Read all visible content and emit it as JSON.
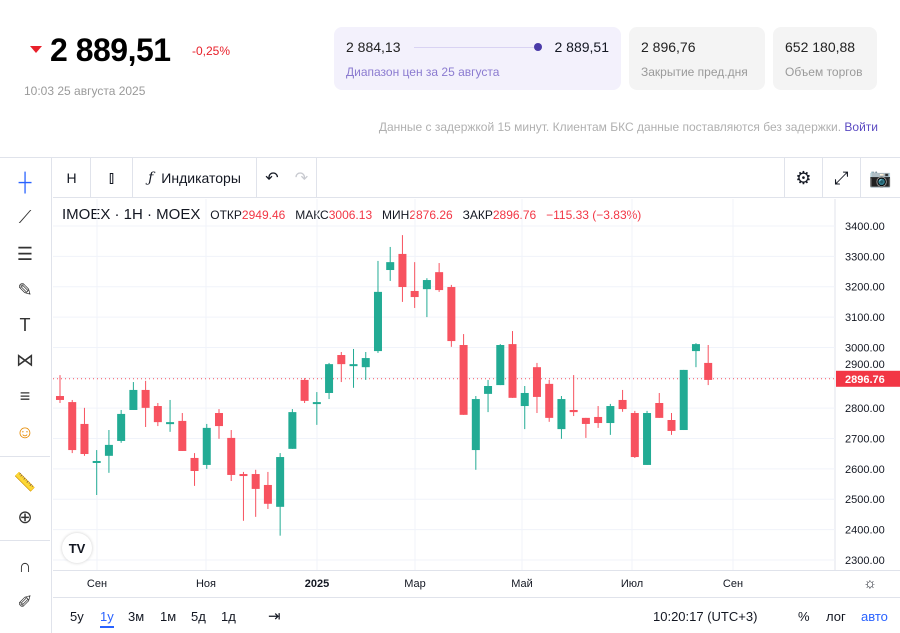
{
  "quote": {
    "price": "2 889,51",
    "change": "-0,25%",
    "timestamp": "10:03 25 августа 2025"
  },
  "stats": {
    "range_low": "2 884,13",
    "range_high": "2 889,51",
    "range_label": "Диапазон цен за 25 августа",
    "prev_close": "2 896,76",
    "prev_close_label": "Закрытие пред.дня",
    "volume": "652 180,88",
    "volume_label": "Объем торгов"
  },
  "notice": {
    "text": "Данные с задержкой 15 минут. Клиентам БКС данные поставляются без задержки.",
    "login": "Войти"
  },
  "toolbar": {
    "interval": "H",
    "indicators": "Индикаторы"
  },
  "legend": {
    "symbol": "IMOEX · 1H · MOEX",
    "open_label": "ОТКР",
    "open": "2949.46",
    "high_label": "МАКС",
    "high": "3006.13",
    "low_label": "МИН",
    "low": "2876.26",
    "close_label": "ЗАКР",
    "close": "2896.76",
    "change": "−115.33 (−3.83%)"
  },
  "colors": {
    "up": "#22ab94",
    "down": "#f7525f",
    "accent": "#2962ff"
  },
  "chart_data": {
    "type": "candlestick",
    "ylim": [
      2250,
      3450
    ],
    "yticks": [
      "3400.00",
      "3300.00",
      "3200.00",
      "3100.00",
      "3000.00",
      "2900.00",
      "2800.00",
      "2700.00",
      "2600.00",
      "2500.00",
      "2400.00",
      "2300.00"
    ],
    "xticks": [
      "Сен",
      "Ноя",
      "2025",
      "Мар",
      "Май",
      "Июл",
      "Сен"
    ],
    "last_price": "2896.76",
    "ohlc": [
      [
        2840,
        2909,
        2817,
        2827
      ],
      [
        2820,
        2827,
        2652,
        2662
      ],
      [
        2748,
        2801,
        2643,
        2649
      ],
      [
        2623,
        2662,
        2514,
        2626
      ],
      [
        2643,
        2728,
        2587,
        2679
      ],
      [
        2692,
        2794,
        2686,
        2781
      ],
      [
        2794,
        2886,
        2794,
        2860
      ],
      [
        2860,
        2890,
        2738,
        2801
      ],
      [
        2807,
        2817,
        2741,
        2754
      ],
      [
        2748,
        2827,
        2722,
        2754
      ],
      [
        2758,
        2784,
        2659,
        2659
      ],
      [
        2636,
        2652,
        2544,
        2593
      ],
      [
        2613,
        2748,
        2600,
        2735
      ],
      [
        2784,
        2797,
        2699,
        2741
      ],
      [
        2702,
        2728,
        2560,
        2580
      ],
      [
        2583,
        2590,
        2429,
        2577
      ],
      [
        2583,
        2597,
        2442,
        2534
      ],
      [
        2547,
        2590,
        2468,
        2485
      ],
      [
        2475,
        2652,
        2380,
        2639
      ],
      [
        2666,
        2797,
        2666,
        2787
      ],
      [
        2893,
        2899,
        2817,
        2824
      ],
      [
        2817,
        2853,
        2745,
        2820
      ],
      [
        2850,
        2949,
        2830,
        2945
      ],
      [
        2975,
        2985,
        2886,
        2945
      ],
      [
        2942,
        2995,
        2867,
        2945
      ],
      [
        2935,
        2985,
        2893,
        2965
      ],
      [
        2988,
        3285,
        2982,
        3183
      ],
      [
        3255,
        3331,
        3219,
        3281
      ],
      [
        3308,
        3370,
        3150,
        3199
      ],
      [
        3186,
        3281,
        3130,
        3166
      ],
      [
        3192,
        3228,
        3100,
        3222
      ],
      [
        3248,
        3278,
        3183,
        3189
      ],
      [
        3199,
        3206,
        3002,
        3021
      ],
      [
        3008,
        3044,
        2778,
        2778
      ],
      [
        2662,
        2840,
        2597,
        2830
      ],
      [
        2847,
        2893,
        2787,
        2873
      ],
      [
        2876,
        3011,
        2876,
        3008
      ],
      [
        3011,
        3054,
        2834,
        2834
      ],
      [
        2807,
        2873,
        2731,
        2850
      ],
      [
        2935,
        2949,
        2784,
        2837
      ],
      [
        2880,
        2893,
        2755,
        2768
      ],
      [
        2731,
        2840,
        2699,
        2830
      ],
      [
        2794,
        2909,
        2774,
        2787
      ],
      [
        2768,
        2768,
        2702,
        2748
      ],
      [
        2771,
        2807,
        2735,
        2751
      ],
      [
        2751,
        2814,
        2712,
        2807
      ],
      [
        2827,
        2860,
        2788,
        2797
      ],
      [
        2784,
        2791,
        2636,
        2639
      ],
      [
        2613,
        2791,
        2613,
        2784
      ],
      [
        2817,
        2850,
        2768,
        2768
      ],
      [
        2761,
        2784,
        2712,
        2725
      ],
      [
        2728,
        2926,
        2728,
        2926
      ],
      [
        2988,
        3014,
        2935,
        3011
      ],
      [
        2949,
        3008,
        2876,
        2893
      ]
    ]
  },
  "bottom": {
    "ranges": [
      "5y",
      "1y",
      "3м",
      "1м",
      "5д",
      "1д"
    ],
    "time": "10:20:17 (UTC+3)",
    "percent": "%",
    "log": "лог",
    "auto": "авто"
  }
}
